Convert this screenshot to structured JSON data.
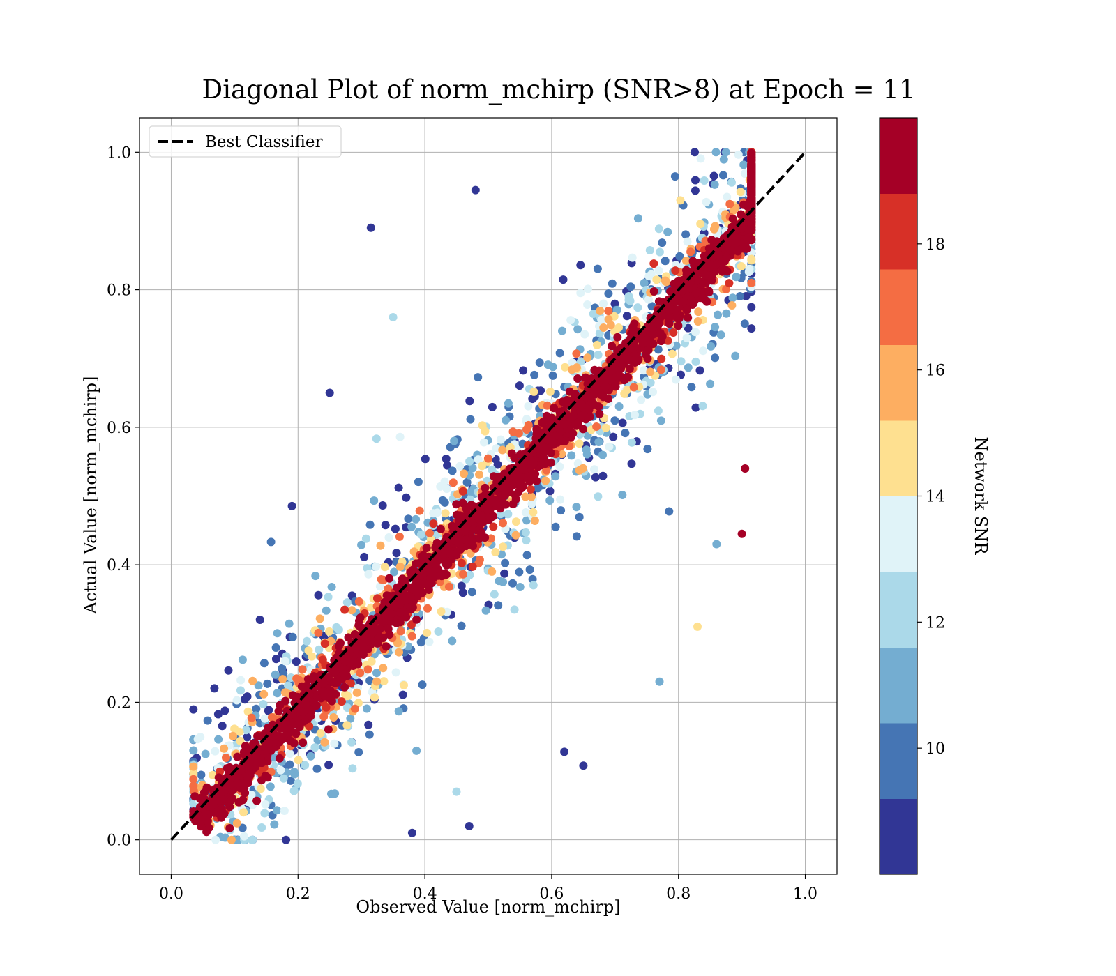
{
  "chart_data": {
    "type": "scatter",
    "title": "Diagonal Plot of norm_mchirp (SNR>8) at Epoch = 11",
    "xlabel": "Observed Value [norm_mchirp]",
    "ylabel": "Actual Value [norm_mchirp]",
    "xlim": [
      -0.05,
      1.05
    ],
    "ylim": [
      -0.05,
      1.05
    ],
    "xticks": [
      0.0,
      0.2,
      0.4,
      0.6,
      0.8,
      1.0
    ],
    "yticks": [
      0.0,
      0.2,
      0.4,
      0.6,
      0.8,
      1.0
    ],
    "xtick_labels": [
      "0.0",
      "0.2",
      "0.4",
      "0.6",
      "0.8",
      "1.0"
    ],
    "ytick_labels": [
      "0.0",
      "0.2",
      "0.4",
      "0.6",
      "0.8",
      "1.0"
    ],
    "grid": true,
    "legend": {
      "position": "top-left",
      "entries": [
        {
          "label": "Best Classifier",
          "style": "dashed",
          "color": "#000000"
        }
      ]
    },
    "reference_line": {
      "name": "Best Classifier",
      "x": [
        0.0,
        1.0
      ],
      "y": [
        0.0,
        1.0
      ]
    },
    "colorbar": {
      "label": "Network SNR",
      "range": [
        8,
        20
      ],
      "ticks": [
        10,
        12,
        14,
        16,
        18
      ],
      "tick_labels": [
        "10",
        "12",
        "14",
        "16",
        "18"
      ],
      "bins": 10,
      "colors": [
        "#313695",
        "#4575b4",
        "#74add1",
        "#abd9e9",
        "#e0f3f8",
        "#fee090",
        "#fdae61",
        "#f46d43",
        "#d73027",
        "#a50026"
      ]
    },
    "scatter_distribution": {
      "description": "Dense cloud around y = x; high-SNR points (dark red) concentrated tightly on the diagonal, low-SNR points (blue) spread further away.",
      "x_range": [
        0.03,
        0.92
      ],
      "y_range": [
        0.0,
        1.0
      ],
      "n_points_rendered": 4000
    },
    "notable_outliers": [
      {
        "x": 0.48,
        "y": 0.945,
        "snr": 9
      },
      {
        "x": 0.315,
        "y": 0.89,
        "snr": 9
      },
      {
        "x": 0.25,
        "y": 0.65,
        "snr": 9
      },
      {
        "x": 0.14,
        "y": 0.32,
        "snr": 9
      },
      {
        "x": 0.65,
        "y": 0.108,
        "snr": 9
      },
      {
        "x": 0.62,
        "y": 0.128,
        "snr": 9
      },
      {
        "x": 0.47,
        "y": 0.02,
        "snr": 9
      },
      {
        "x": 0.38,
        "y": 0.01,
        "snr": 9
      },
      {
        "x": 0.905,
        "y": 0.54,
        "snr": 20
      },
      {
        "x": 0.9,
        "y": 0.445,
        "snr": 20
      },
      {
        "x": 0.86,
        "y": 0.43,
        "snr": 11
      },
      {
        "x": 0.77,
        "y": 0.23,
        "snr": 11
      },
      {
        "x": 0.35,
        "y": 0.76,
        "snr": 12
      },
      {
        "x": 0.83,
        "y": 0.31,
        "snr": 14
      },
      {
        "x": 0.45,
        "y": 0.07,
        "snr": 12
      }
    ]
  }
}
